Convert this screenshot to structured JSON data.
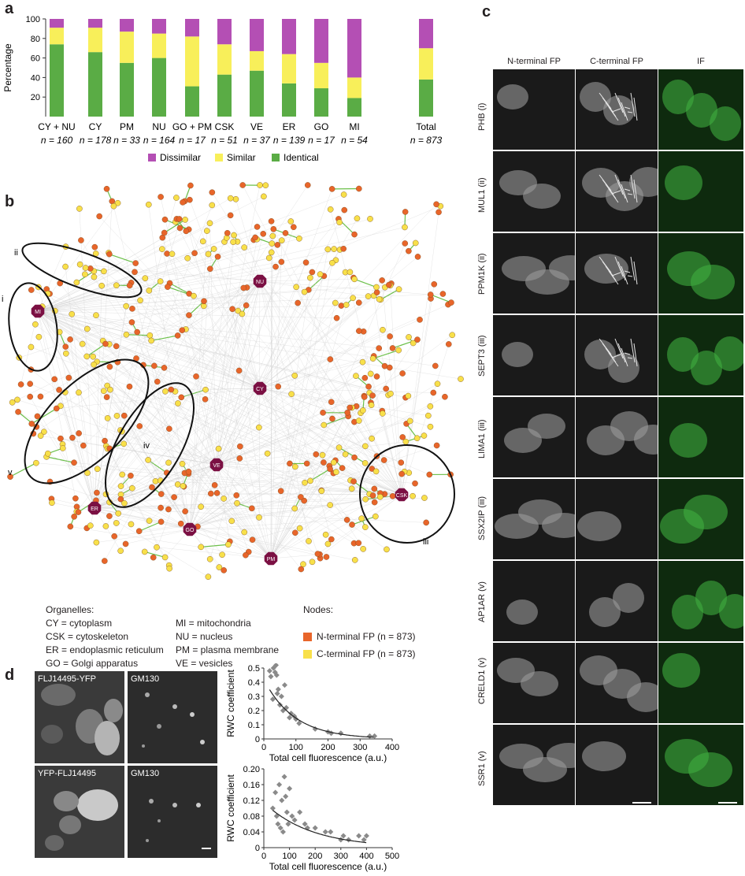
{
  "panel_labels": {
    "a": "a",
    "b": "b",
    "c": "c",
    "d": "d"
  },
  "panel_a": {
    "chart_data": {
      "type": "bar",
      "ylabel": "Percentage",
      "ylim": [
        0,
        100
      ],
      "yticks": [
        20,
        40,
        60,
        80,
        100
      ],
      "categories": [
        "CY + NU",
        "CY",
        "PM",
        "NU",
        "GO + PM",
        "CSK",
        "VE",
        "ER",
        "GO",
        "MI",
        "Total"
      ],
      "n_labels": [
        "n = 160",
        "n = 178",
        "n = 33",
        "n = 164",
        "n = 17",
        "n = 51",
        "n = 37",
        "n = 139",
        "n = 17",
        "n = 54",
        "n = 873"
      ],
      "series": [
        {
          "name": "Identical",
          "color": "#5aac45",
          "values": [
            74,
            66,
            55,
            60,
            31,
            43,
            47,
            34,
            29,
            19,
            38
          ]
        },
        {
          "name": "Similar",
          "color": "#f8ef5a",
          "values": [
            17,
            25,
            32,
            25,
            51,
            31,
            20,
            30,
            26,
            21,
            32
          ]
        },
        {
          "name": "Dissimilar",
          "color": "#b44fb4",
          "values": [
            9,
            9,
            13,
            15,
            18,
            26,
            33,
            36,
            45,
            60,
            30
          ]
        }
      ],
      "legend_order": [
        "Dissimilar",
        "Similar",
        "Identical"
      ]
    }
  },
  "panel_b": {
    "hubs": [
      "NU",
      "MI",
      "CY",
      "VE",
      "ER",
      "GO",
      "CSK",
      "PM"
    ],
    "cluster_labels": [
      "i",
      "ii",
      "iii",
      "iv",
      "v"
    ],
    "organelles_title": "Organelles:",
    "organelles": [
      "CY = cytoplasm",
      "CSK = cytoskeleton",
      "ER = endoplasmic reticulum",
      "GO = Golgi apparatus",
      "MI = mitochondria",
      "NU = nucleus",
      "PM = plasma membrane",
      "VE = vesicles"
    ],
    "nodes_title": "Nodes:",
    "node_legend": [
      {
        "label": "N-terminal FP (n = 873)",
        "color": "#e8652a"
      },
      {
        "label": "C-terminal FP (n = 873)",
        "color": "#f8e04a"
      }
    ],
    "colors": {
      "n_node": "#e8652a",
      "c_node": "#f8e04a",
      "hub": "#7b1043",
      "edge_gray": "#cfcfcf",
      "edge_green": "#6cc04a"
    }
  },
  "panel_c": {
    "columns": [
      "N-terminal FP",
      "C-terminal FP",
      "IF"
    ],
    "rows": [
      "PHB (i)",
      "MUL1 (ii)",
      "PPM1K (ii)",
      "SEPT3 (iii)",
      "LIMA1 (iii)",
      "SSX2IP (iii)",
      "AP1AR (v)",
      "CRELD1 (v)",
      "SSR1 (v)"
    ]
  },
  "panel_d": {
    "images": [
      {
        "label": "FLJ14495-YFP"
      },
      {
        "label": "GM130"
      },
      {
        "label": "YFP-FLJ14495"
      },
      {
        "label": "GM130"
      }
    ],
    "chart_data": [
      {
        "type": "scatter",
        "xlabel": "Total cell fluorescence (a.u.)",
        "ylabel": "RWC coefficient",
        "xlim": [
          0,
          400
        ],
        "ylim": [
          0,
          0.5
        ],
        "xticks": [
          0,
          100,
          200,
          300,
          400
        ],
        "yticks": [
          0,
          0.1,
          0.2,
          0.3,
          0.4,
          0.5
        ],
        "ytick_labels": [
          "0",
          "0.1",
          "0.2",
          "0.3",
          "0.4",
          "0.5"
        ],
        "xtick_labels": [
          "0",
          "100",
          "200",
          "300",
          "400"
        ],
        "x": [
          18,
          22,
          28,
          30,
          35,
          38,
          40,
          42,
          45,
          50,
          55,
          60,
          65,
          70,
          80,
          85,
          95,
          100,
          110,
          160,
          200,
          210,
          240,
          330,
          345
        ],
        "y": [
          0.48,
          0.44,
          0.28,
          0.5,
          0.47,
          0.52,
          0.45,
          0.32,
          0.35,
          0.24,
          0.3,
          0.2,
          0.38,
          0.22,
          0.15,
          0.18,
          0.16,
          0.14,
          0.11,
          0.07,
          0.05,
          0.04,
          0.04,
          0.02,
          0.02
        ],
        "fit": {
          "a": 0.42,
          "b": 0.0105
        }
      },
      {
        "type": "scatter",
        "xlabel": "Total cell fluorescence (a.u.)",
        "ylabel": "RWC coefficient",
        "xlim": [
          0,
          500
        ],
        "ylim": [
          0,
          0.2
        ],
        "xticks": [
          0,
          100,
          200,
          300,
          400,
          500
        ],
        "yticks": [
          0,
          0.04,
          0.08,
          0.12,
          0.16,
          0.2
        ],
        "ytick_labels": [
          "0",
          "0.04",
          "0.08",
          "0.12",
          "0.16",
          "0.20"
        ],
        "xtick_labels": [
          "0",
          "100",
          "200",
          "300",
          "400",
          "500"
        ],
        "x": [
          35,
          45,
          50,
          55,
          60,
          65,
          70,
          75,
          80,
          85,
          90,
          95,
          100,
          110,
          120,
          140,
          160,
          170,
          200,
          240,
          260,
          300,
          310,
          330,
          370,
          390,
          400
        ],
        "y": [
          0.1,
          0.14,
          0.08,
          0.06,
          0.16,
          0.05,
          0.12,
          0.04,
          0.18,
          0.13,
          0.09,
          0.06,
          0.15,
          0.08,
          0.07,
          0.09,
          0.06,
          0.05,
          0.05,
          0.04,
          0.04,
          0.02,
          0.03,
          0.02,
          0.03,
          0.02,
          0.03
        ],
        "fit": {
          "a": 0.115,
          "b": 0.0055
        }
      }
    ]
  }
}
